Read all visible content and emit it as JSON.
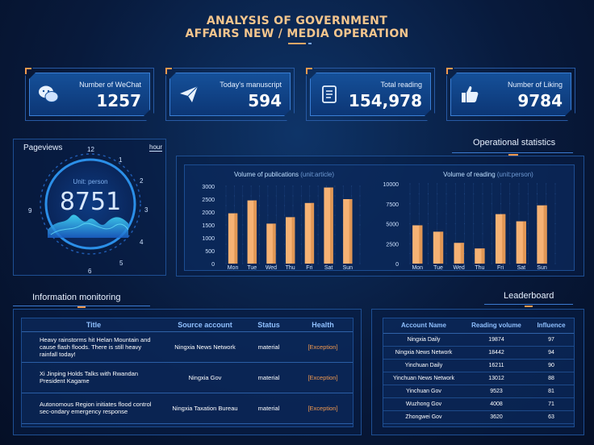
{
  "title": {
    "line1": "ANALYSIS OF GOVERNMENT",
    "line2": "AFFAIRS NEW / MEDIA OPERATION"
  },
  "stats": [
    {
      "label": "Number of WeChat",
      "value": "1257",
      "icon": "wechat-icon"
    },
    {
      "label": "Today's manuscript",
      "value": "594",
      "icon": "paper-plane-icon"
    },
    {
      "label": "Total reading",
      "value": "154,978",
      "icon": "document-icon"
    },
    {
      "label": "Number of Liking",
      "value": "9784",
      "icon": "thumbs-up-icon"
    }
  ],
  "pageviews": {
    "title": "Pageviews",
    "unit_toggle": "hour",
    "unit_label": "Unit: person",
    "value": "8751",
    "clock_numbers": [
      "12",
      "1",
      "2",
      "3",
      "4",
      "5",
      "6",
      "9"
    ]
  },
  "operational": {
    "title": "Operational statistics"
  },
  "chart_data": [
    {
      "type": "bar",
      "title": "Volume of publications",
      "unit": "(unit:article)",
      "categories": [
        "Mon",
        "Tue",
        "Wed",
        "Thu",
        "Fri",
        "Sat",
        "Sun"
      ],
      "values": [
        1950,
        2450,
        1550,
        1800,
        2350,
        2950,
        2500
      ],
      "ylim": [
        0,
        3000
      ],
      "yticks": [
        "3000",
        "2500",
        "2000",
        "1500",
        "1000",
        "500",
        "0"
      ],
      "color": "#f6b274"
    },
    {
      "type": "bar",
      "title": "Volume of reading",
      "unit": "(unit:person)",
      "categories": [
        "Mon",
        "Tue",
        "Wed",
        "Thu",
        "Fri",
        "Sat",
        "Sun"
      ],
      "values": [
        4800,
        4000,
        2600,
        1900,
        6200,
        5300,
        7300
      ],
      "ylim": [
        0,
        10000
      ],
      "yticks": [
        "10000",
        "7500",
        "5000",
        "2500",
        "0"
      ],
      "color": "#f6b274"
    }
  ],
  "info": {
    "title": "Information monitoring",
    "headers": [
      "Title",
      "Source account",
      "Status",
      "Health"
    ],
    "rows": [
      {
        "title": "Heavy rainstorms hit Helan Mountain and cause flash floods. There is still heavy rainfall today!",
        "source": "Ningxia News Network",
        "status": "material",
        "health": "[Exception]"
      },
      {
        "title": "Xi Jinping Holds Talks with Rwandan President Kagame",
        "source": "Ningxia Gov",
        "status": "material",
        "health": "[Exception]"
      },
      {
        "title": "Autonomous Region initiates flood control sec-ondary emergency response",
        "source": "Ningxia Taxation Bureau",
        "status": "material",
        "health": "[Exception]"
      }
    ]
  },
  "leaderboard": {
    "title": "Leaderboard",
    "headers": [
      "Account Name",
      "Reading volume",
      "Influence"
    ],
    "rows": [
      [
        "Ningxia Daily",
        "19874",
        "97"
      ],
      [
        "Ningxia News Network",
        "18442",
        "94"
      ],
      [
        "Yinchuan Daily",
        "16211",
        "90"
      ],
      [
        "Yinchuan News Network",
        "13012",
        "88"
      ],
      [
        "Yinchuan Gov",
        "9523",
        "81"
      ],
      [
        "Wuzhong Gov",
        "4008",
        "71"
      ],
      [
        "Zhongwei Gov",
        "3620",
        "63"
      ]
    ]
  }
}
